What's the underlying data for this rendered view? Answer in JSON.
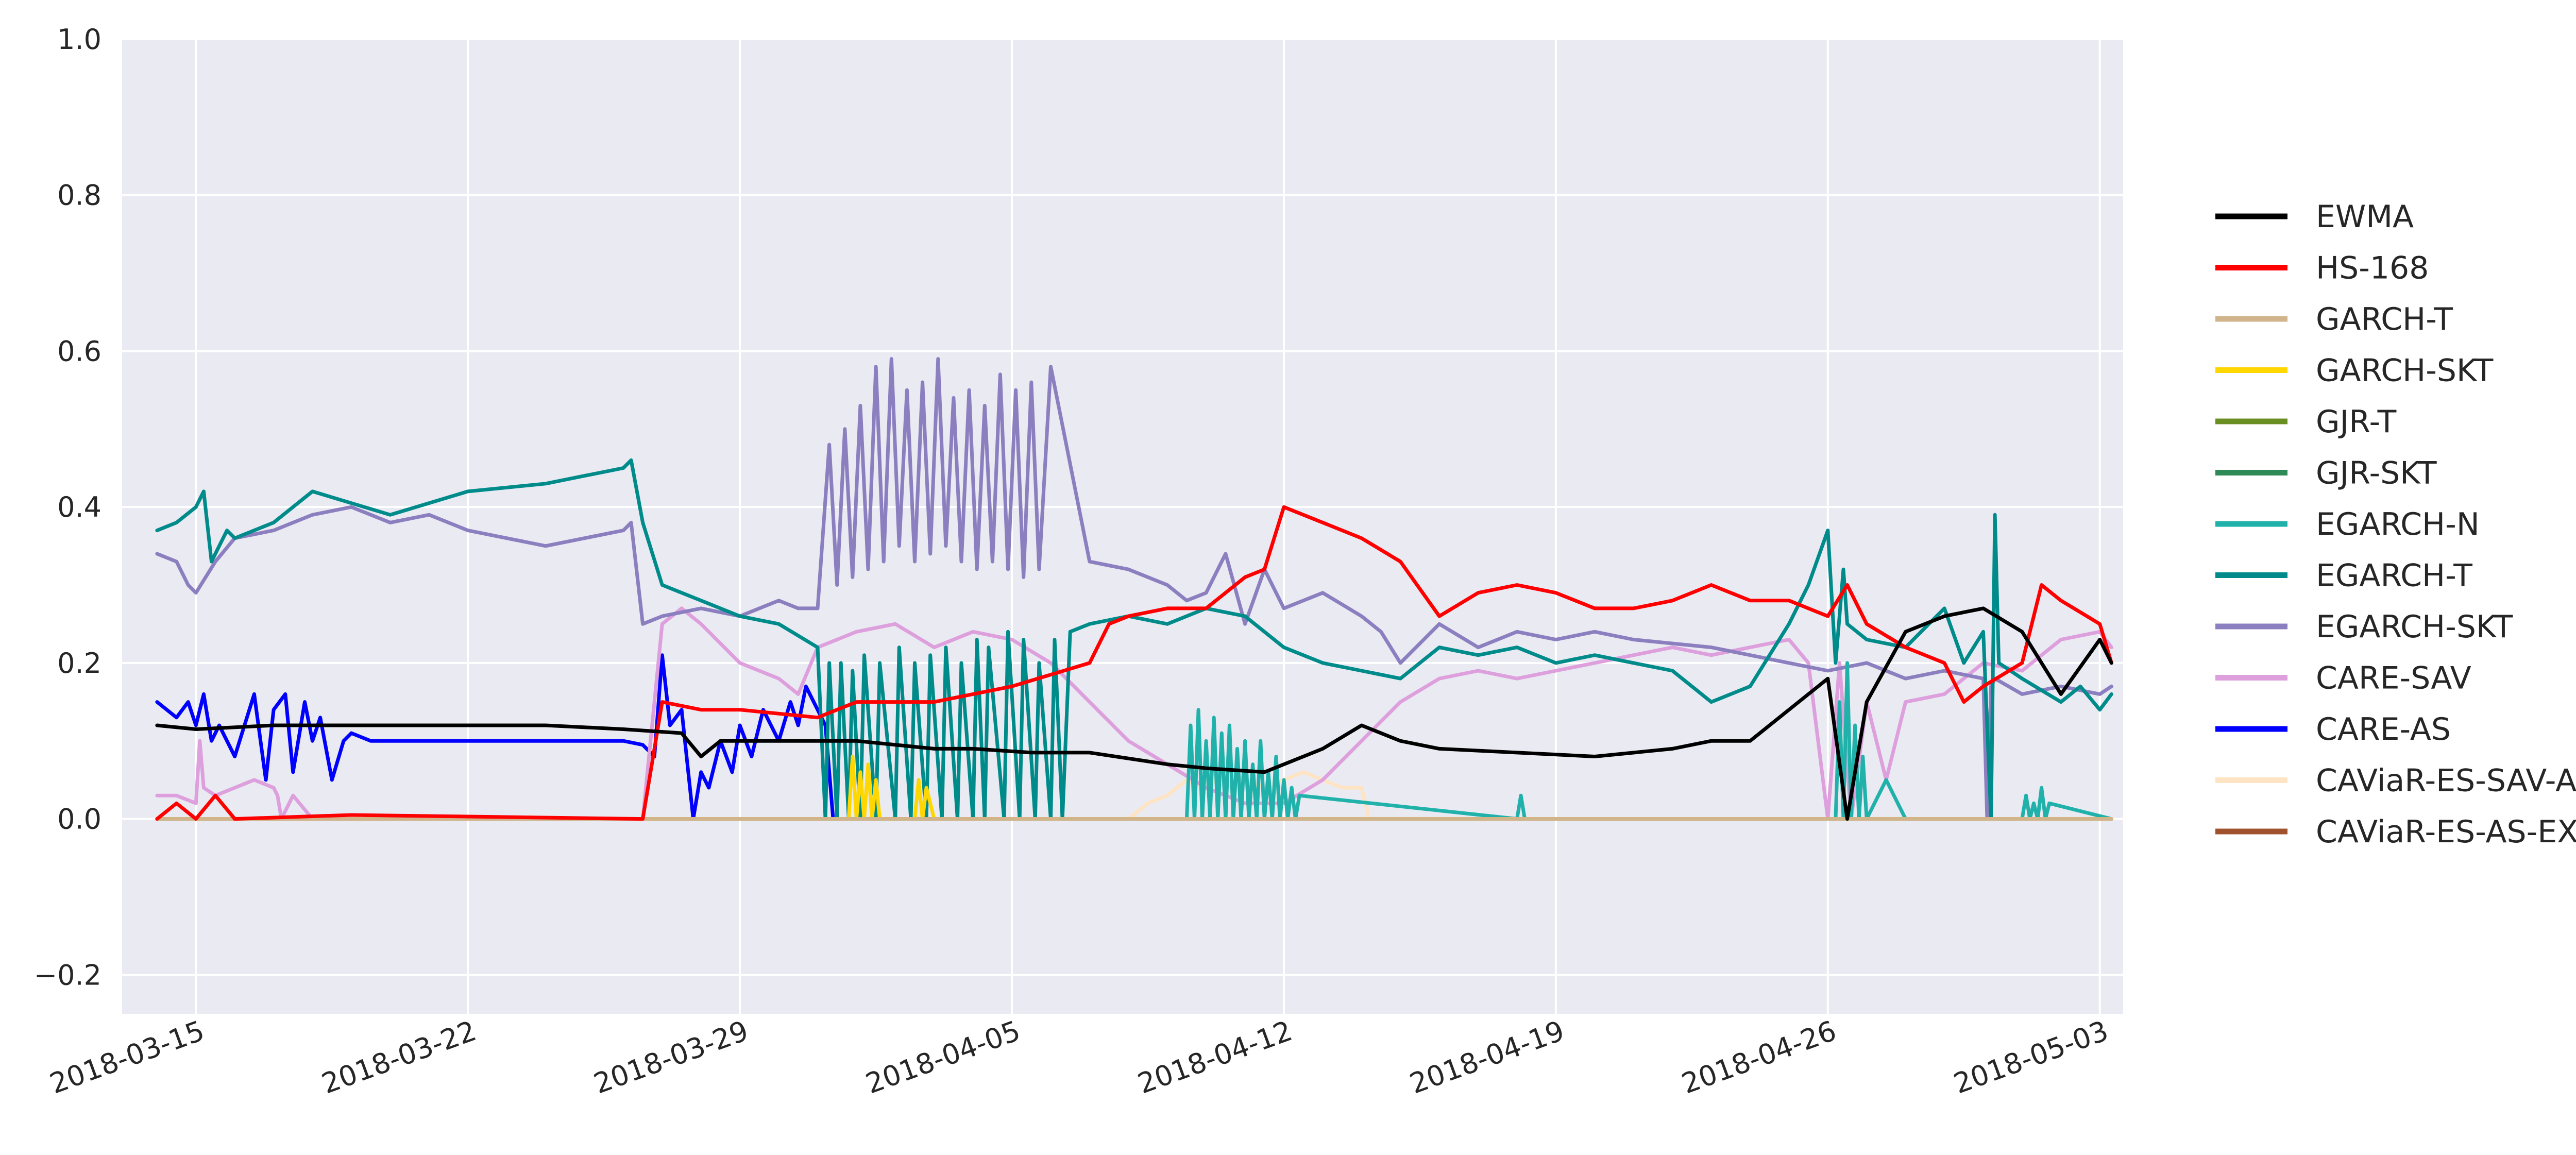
{
  "chart_data": {
    "type": "line",
    "title": "",
    "xlabel": "",
    "ylabel": "",
    "x_range": [
      "2018-03-14",
      "2018-05-03"
    ],
    "xlim": [
      -0.9,
      50.6
    ],
    "ylim": [
      -0.25,
      1.0
    ],
    "x_ticks": [
      {
        "label": "2018-03-15",
        "day": 1
      },
      {
        "label": "2018-03-22",
        "day": 8
      },
      {
        "label": "2018-03-29",
        "day": 15
      },
      {
        "label": "2018-04-05",
        "day": 22
      },
      {
        "label": "2018-04-12",
        "day": 29
      },
      {
        "label": "2018-04-19",
        "day": 36
      },
      {
        "label": "2018-04-26",
        "day": 43
      },
      {
        "label": "2018-05-03",
        "day": 50
      }
    ],
    "y_ticks": [
      {
        "label": "−0.2",
        "value": -0.2
      },
      {
        "label": "0.0",
        "value": 0.0
      },
      {
        "label": "0.2",
        "value": 0.2
      },
      {
        "label": "0.4",
        "value": 0.4
      },
      {
        "label": "0.6",
        "value": 0.6
      },
      {
        "label": "0.8",
        "value": 0.8
      },
      {
        "label": "1.0",
        "value": 1.0
      }
    ],
    "grid": true,
    "legend_position": "right",
    "series": [
      {
        "name": "EWMA",
        "color": "#000000",
        "x": [
          0,
          1,
          3,
          6,
          10,
          12,
          13.5,
          14,
          14.5,
          16,
          18,
          20,
          21,
          22.5,
          24,
          26,
          27,
          28.5,
          30,
          31,
          32,
          33,
          35,
          37,
          39,
          40,
          41,
          42,
          43,
          43.5,
          44,
          45,
          46,
          47,
          48,
          49,
          50,
          50.3
        ],
        "y": [
          0.12,
          0.115,
          0.12,
          0.12,
          0.12,
          0.115,
          0.11,
          0.08,
          0.1,
          0.1,
          0.1,
          0.09,
          0.09,
          0.085,
          0.085,
          0.07,
          0.065,
          0.06,
          0.09,
          0.12,
          0.1,
          0.09,
          0.085,
          0.08,
          0.09,
          0.1,
          0.1,
          0.14,
          0.18,
          0.0,
          0.15,
          0.24,
          0.26,
          0.27,
          0.24,
          0.16,
          0.23,
          0.2
        ]
      },
      {
        "name": "HS-168",
        "color": "#ff0000",
        "x": [
          0,
          0.5,
          1,
          1.5,
          2,
          5,
          12.5,
          13,
          14,
          15,
          17,
          18,
          20,
          22,
          24,
          24.5,
          25,
          26,
          27,
          28,
          28.5,
          29,
          30,
          31,
          32,
          33,
          34,
          35,
          36,
          37,
          38,
          39,
          40,
          41,
          42,
          43,
          43.5,
          44,
          45,
          46,
          46.5,
          47,
          48,
          48.5,
          49,
          50,
          50.3
        ],
        "y": [
          0.0,
          0.02,
          0.0,
          0.03,
          0.0,
          0.005,
          0.0,
          0.15,
          0.14,
          0.14,
          0.13,
          0.15,
          0.15,
          0.17,
          0.2,
          0.25,
          0.26,
          0.27,
          0.27,
          0.31,
          0.32,
          0.4,
          0.38,
          0.36,
          0.33,
          0.26,
          0.29,
          0.3,
          0.29,
          0.27,
          0.27,
          0.28,
          0.3,
          0.28,
          0.28,
          0.26,
          0.3,
          0.25,
          0.22,
          0.2,
          0.15,
          0.17,
          0.2,
          0.3,
          0.28,
          0.25,
          0.2
        ]
      },
      {
        "name": "GARCH-T",
        "color": "#d2b48c",
        "x": [
          0,
          50.3
        ],
        "y": [
          0.0,
          0.0
        ]
      },
      {
        "name": "GARCH-SKT",
        "color": "#ffd700",
        "x": [
          0,
          17.8,
          17.9,
          18.0,
          18.1,
          18.2,
          18.3,
          18.4,
          18.5,
          18.6,
          19.5,
          19.6,
          19.7,
          19.8,
          20,
          50.3
        ],
        "y": [
          0,
          0,
          0.08,
          0,
          0.06,
          0,
          0.07,
          0,
          0.05,
          0,
          0,
          0.05,
          0,
          0.04,
          0,
          0
        ]
      },
      {
        "name": "GJR-T",
        "color": "#6b8e23",
        "x": [
          0,
          50.3
        ],
        "y": [
          0.0,
          0.0
        ]
      },
      {
        "name": "GJR-SKT",
        "color": "#2e8b57",
        "x": [
          0,
          50.3
        ],
        "y": [
          0.0,
          0.0
        ]
      },
      {
        "name": "EGARCH-N",
        "color": "#20b2aa",
        "x": [
          0,
          26.5,
          26.6,
          26.7,
          26.8,
          26.9,
          27.0,
          27.1,
          27.2,
          27.3,
          27.4,
          27.5,
          27.6,
          27.7,
          27.8,
          27.9,
          28.0,
          28.1,
          28.2,
          28.3,
          28.4,
          28.5,
          28.6,
          28.7,
          28.8,
          28.9,
          29.0,
          29.1,
          29.2,
          29.3,
          29.4,
          35,
          35.1,
          35.2,
          42,
          43.2,
          43.3,
          43.4,
          43.5,
          43.6,
          43.7,
          43.8,
          43.9,
          44.0,
          44.5,
          45,
          48,
          48.1,
          48.2,
          48.3,
          48.4,
          48.5,
          48.6,
          48.7,
          50.3
        ],
        "y": [
          0,
          0,
          0.12,
          0,
          0.14,
          0,
          0.1,
          0,
          0.13,
          0,
          0.11,
          0,
          0.12,
          0,
          0.09,
          0,
          0.1,
          0,
          0.07,
          0,
          0.1,
          0,
          0.06,
          0,
          0.08,
          0,
          0.05,
          0,
          0.04,
          0,
          0.03,
          0,
          0.03,
          0,
          0,
          0,
          0.15,
          0,
          0.2,
          0,
          0.12,
          0,
          0.08,
          0,
          0.05,
          0,
          0,
          0.03,
          0,
          0.02,
          0,
          0.04,
          0,
          0.02,
          0
        ]
      },
      {
        "name": "EGARCH-T",
        "color": "#008b8b",
        "x": [
          0,
          0.5,
          1,
          1.2,
          1.4,
          1.6,
          1.8,
          2,
          3,
          4,
          6,
          8,
          10,
          11,
          12,
          12.2,
          12.5,
          13,
          14,
          15,
          16,
          17,
          17.2,
          17.3,
          17.5,
          17.6,
          17.8,
          17.9,
          18.1,
          18.2,
          18.5,
          18.6,
          19,
          19.1,
          19.4,
          19.5,
          19.8,
          19.9,
          20.2,
          20.3,
          20.6,
          20.7,
          21,
          21.1,
          21.3,
          21.4,
          21.8,
          21.9,
          22.2,
          22.3,
          22.6,
          22.7,
          23,
          23.1,
          23.3,
          23.5,
          24,
          25,
          26,
          27,
          28,
          29,
          30,
          31,
          32,
          33,
          34,
          35,
          36,
          37,
          38,
          39,
          40,
          41,
          42,
          42.5,
          43,
          43.2,
          43.4,
          43.5,
          44,
          45,
          46,
          46.5,
          47,
          47.2,
          47.3,
          47.4,
          48,
          49,
          49.5,
          50,
          50.3
        ],
        "y": [
          0.37,
          0.38,
          0.4,
          0.42,
          0.33,
          0.35,
          0.37,
          0.36,
          0.38,
          0.42,
          0.39,
          0.42,
          0.43,
          0.44,
          0.45,
          0.46,
          0.38,
          0.3,
          0.28,
          0.26,
          0.25,
          0.22,
          0.0,
          0.2,
          0.0,
          0.2,
          0.0,
          0.19,
          0.0,
          0.21,
          0.0,
          0.2,
          0.0,
          0.22,
          0.0,
          0.2,
          0.0,
          0.21,
          0.0,
          0.22,
          0.0,
          0.2,
          0.0,
          0.23,
          0.0,
          0.22,
          0.0,
          0.24,
          0.0,
          0.23,
          0.0,
          0.2,
          0.0,
          0.23,
          0.0,
          0.24,
          0.25,
          0.26,
          0.25,
          0.27,
          0.26,
          0.22,
          0.2,
          0.19,
          0.18,
          0.22,
          0.21,
          0.22,
          0.2,
          0.21,
          0.2,
          0.19,
          0.15,
          0.17,
          0.25,
          0.3,
          0.37,
          0.2,
          0.32,
          0.25,
          0.23,
          0.22,
          0.27,
          0.2,
          0.24,
          0.0,
          0.39,
          0.2,
          0.18,
          0.15,
          0.17,
          0.14,
          0.16
        ]
      },
      {
        "name": "EGARCH-SKT",
        "color": "#8c7fbf",
        "x": [
          0,
          0.5,
          0.8,
          1,
          1.5,
          2,
          3,
          4,
          5,
          6,
          7,
          8,
          9,
          10,
          11,
          12,
          12.2,
          12.5,
          13,
          14,
          15,
          16,
          16.5,
          17,
          17.3,
          17.5,
          17.7,
          17.9,
          18.1,
          18.3,
          18.5,
          18.7,
          18.9,
          19.1,
          19.3,
          19.5,
          19.7,
          19.9,
          20.1,
          20.3,
          20.5,
          20.7,
          20.9,
          21.1,
          21.3,
          21.5,
          21.7,
          21.9,
          22.1,
          22.3,
          22.5,
          22.7,
          23,
          24,
          25,
          26,
          26.5,
          27,
          27.5,
          28,
          28.5,
          29,
          30,
          31,
          31.5,
          32,
          33,
          34,
          35,
          36,
          37,
          38,
          40,
          41,
          42,
          43,
          44,
          45,
          46,
          47,
          47.1,
          47.2,
          47.3,
          48,
          49,
          50,
          50.3
        ],
        "y": [
          0.34,
          0.33,
          0.3,
          0.29,
          0.33,
          0.36,
          0.37,
          0.39,
          0.4,
          0.38,
          0.39,
          0.37,
          0.36,
          0.35,
          0.36,
          0.37,
          0.38,
          0.25,
          0.26,
          0.27,
          0.26,
          0.28,
          0.27,
          0.27,
          0.48,
          0.3,
          0.5,
          0.31,
          0.53,
          0.32,
          0.58,
          0.33,
          0.59,
          0.35,
          0.55,
          0.33,
          0.56,
          0.34,
          0.59,
          0.35,
          0.54,
          0.33,
          0.55,
          0.32,
          0.53,
          0.33,
          0.57,
          0.32,
          0.55,
          0.31,
          0.56,
          0.32,
          0.58,
          0.33,
          0.32,
          0.3,
          0.28,
          0.29,
          0.34,
          0.25,
          0.32,
          0.27,
          0.29,
          0.26,
          0.24,
          0.2,
          0.25,
          0.22,
          0.24,
          0.23,
          0.24,
          0.23,
          0.22,
          0.21,
          0.2,
          0.19,
          0.2,
          0.18,
          0.19,
          0.18,
          0.0,
          0.17,
          0.18,
          0.16,
          0.17,
          0.16,
          0.17
        ]
      },
      {
        "name": "CARE-SAV",
        "color": "#dda0dd",
        "x": [
          0,
          0.5,
          1,
          1.1,
          1.2,
          1.5,
          2,
          2.5,
          3,
          3.1,
          3.2,
          3.5,
          4,
          12.5,
          13,
          13.5,
          14,
          15,
          16,
          16.5,
          17,
          17.5,
          18,
          19,
          20,
          21,
          22,
          23,
          24,
          25,
          26,
          27,
          28,
          29,
          30,
          31,
          32,
          33,
          34,
          35,
          36,
          37,
          38,
          39,
          40,
          41,
          42,
          42.5,
          43,
          43.3,
          43.6,
          44,
          44.5,
          45,
          46,
          47,
          48,
          49,
          50,
          50.3
        ],
        "y": [
          0.03,
          0.03,
          0.02,
          0.1,
          0.04,
          0.03,
          0.04,
          0.05,
          0.04,
          0.03,
          0.0,
          0.03,
          0.0,
          0.0,
          0.25,
          0.27,
          0.25,
          0.2,
          0.18,
          0.16,
          0.22,
          0.23,
          0.24,
          0.25,
          0.22,
          0.24,
          0.23,
          0.2,
          0.15,
          0.1,
          0.07,
          0.04,
          0.02,
          0.02,
          0.05,
          0.1,
          0.15,
          0.18,
          0.19,
          0.18,
          0.19,
          0.2,
          0.21,
          0.22,
          0.21,
          0.22,
          0.23,
          0.2,
          0.0,
          0.2,
          0.0,
          0.15,
          0.05,
          0.15,
          0.16,
          0.2,
          0.19,
          0.23,
          0.24,
          0.22
        ]
      },
      {
        "name": "CARE-AS",
        "color": "#0000ff",
        "x": [
          0,
          0.5,
          0.8,
          1,
          1.2,
          1.4,
          1.6,
          2,
          2.5,
          2.8,
          3,
          3.3,
          3.5,
          3.8,
          4,
          4.2,
          4.5,
          4.8,
          5,
          5.5,
          6,
          8,
          10,
          12,
          12.5,
          12.8,
          13,
          13.2,
          13.5,
          13.8,
          14,
          14.2,
          14.5,
          14.8,
          15,
          15.3,
          15.6,
          16,
          16.3,
          16.5,
          16.7,
          17,
          17.2,
          17.4
        ],
        "y": [
          0.15,
          0.13,
          0.15,
          0.12,
          0.16,
          0.1,
          0.12,
          0.08,
          0.16,
          0.05,
          0.14,
          0.16,
          0.06,
          0.15,
          0.1,
          0.13,
          0.05,
          0.1,
          0.11,
          0.1,
          0.1,
          0.1,
          0.1,
          0.1,
          0.095,
          0.08,
          0.21,
          0.12,
          0.14,
          0.0,
          0.06,
          0.04,
          0.1,
          0.06,
          0.12,
          0.08,
          0.14,
          0.1,
          0.15,
          0.12,
          0.17,
          0.14,
          0.12,
          0.0
        ]
      },
      {
        "name": "CAViaR-ES-SAV-AR",
        "color": "#ffe4c4",
        "x": [
          0,
          25,
          25.5,
          26,
          26.5,
          27,
          27.5,
          28,
          28.5,
          29,
          29.5,
          30,
          30.5,
          31,
          31.2,
          50.3
        ],
        "y": [
          0,
          0,
          0.02,
          0.03,
          0.05,
          0.04,
          0.06,
          0.05,
          0.04,
          0.05,
          0.06,
          0.05,
          0.04,
          0.04,
          0,
          0
        ]
      },
      {
        "name": "CAViaR-ES-AS-EXP",
        "color": "#a0522d",
        "x": [
          0,
          50.3
        ],
        "y": [
          0.0,
          0.0
        ]
      }
    ]
  }
}
